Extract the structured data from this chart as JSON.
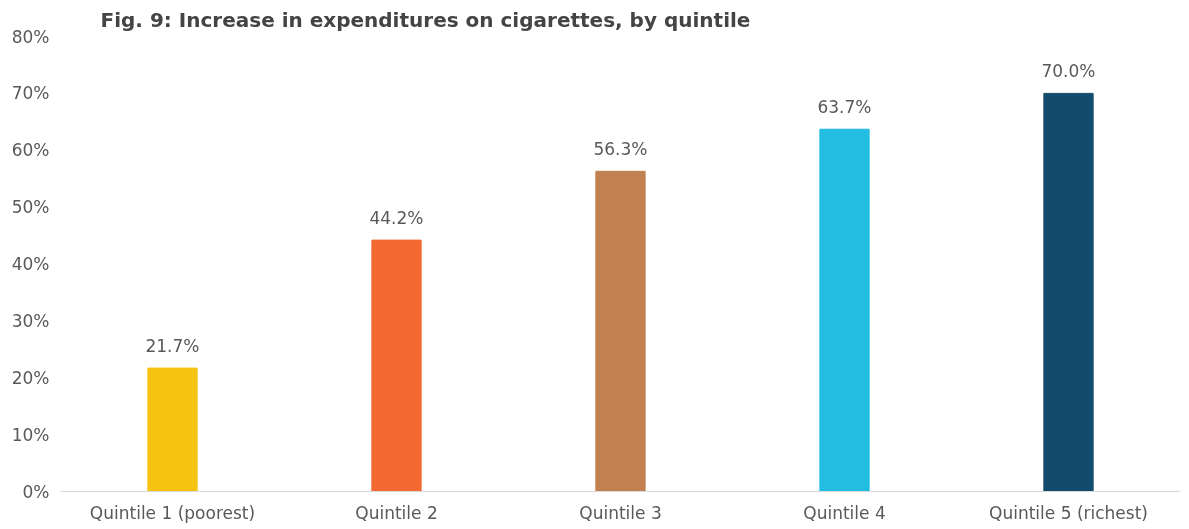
{
  "chart_data": {
    "type": "bar",
    "title": "Fig. 9: Increase in expenditures on cigarettes, by quintile",
    "categories": [
      "Quintile 1 (poorest)",
      "Quintile 2",
      "Quintile 3",
      "Quintile 4",
      "Quintile 5 (richest)"
    ],
    "values": [
      21.7,
      44.2,
      56.3,
      63.7,
      70.0
    ],
    "colors": [
      "#f7c313",
      "#f26a31",
      "#c08050",
      "#22bde1",
      "#134b6e"
    ],
    "value_labels": [
      "21.7%",
      "44.2%",
      "56.3%",
      "63.7%",
      "70.0%"
    ],
    "ylim": [
      0,
      80
    ],
    "yticks": [
      {
        "value": 0,
        "label": "0%"
      },
      {
        "value": 10,
        "label": "10%"
      },
      {
        "value": 20,
        "label": "20%"
      },
      {
        "value": 30,
        "label": "30%"
      },
      {
        "value": 40,
        "label": "40%"
      },
      {
        "value": 50,
        "label": "50%"
      },
      {
        "value": 60,
        "label": "60%"
      },
      {
        "value": 70,
        "label": "70%"
      },
      {
        "value": 80,
        "label": "80%"
      }
    ],
    "grid": false
  }
}
